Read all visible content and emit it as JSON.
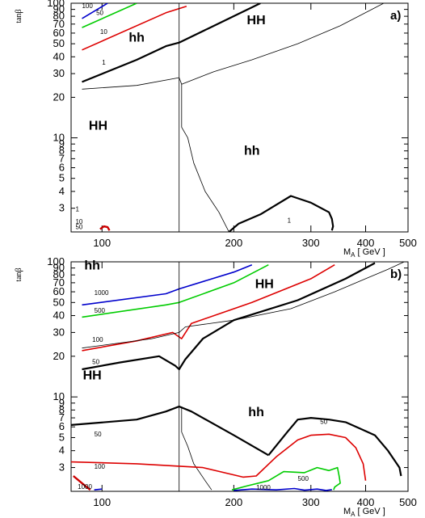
{
  "chart_data": [
    {
      "type": "line",
      "panel_label": "a)",
      "xlabel_main": "M",
      "xlabel_sub": "A",
      "xlabel_unit": "[ GeV ]",
      "ylabel": "tanβ",
      "x_scale": "log",
      "y_scale": "log",
      "xlim": [
        85,
        500
      ],
      "ylim": [
        2,
        100
      ],
      "x_ticks": [
        100,
        200,
        300,
        400,
        500
      ],
      "y_ticks": [
        3,
        4,
        5,
        6,
        7,
        8,
        9,
        10,
        20,
        30,
        40,
        50,
        60,
        70,
        80,
        90,
        100
      ],
      "regions": [
        {
          "text": "hh",
          "x": 120,
          "y": 52
        },
        {
          "text": "HH",
          "x": 225,
          "y": 70
        },
        {
          "text": "HH",
          "x": 98,
          "y": 11.5
        },
        {
          "text": "hh",
          "x": 220,
          "y": 7.5
        }
      ],
      "contour_labels": [
        {
          "text": "100",
          "x": 90,
          "y": 92
        },
        {
          "text": "50",
          "x": 97,
          "y": 82
        },
        {
          "text": "10",
          "x": 99,
          "y": 59
        },
        {
          "text": "1",
          "x": 100,
          "y": 35
        },
        {
          "text": "1",
          "x": 87,
          "y": 2.85
        },
        {
          "text": "10",
          "x": 87,
          "y": 2.3
        },
        {
          "text": "50",
          "x": 87,
          "y": 2.1
        },
        {
          "text": "1",
          "x": 265,
          "y": 2.35
        }
      ],
      "series": [
        {
          "id": "blue",
          "color": "#0000cc",
          "width": 1.6,
          "x": [
            90,
            103
          ],
          "y": [
            77,
            100
          ]
        },
        {
          "id": "green",
          "color": "#00cc00",
          "width": 1.6,
          "x": [
            90,
            120
          ],
          "y": [
            66,
            100
          ]
        },
        {
          "id": "red",
          "color": "#dd0000",
          "width": 1.6,
          "x": [
            90,
            140,
            156
          ],
          "y": [
            45,
            85,
            95
          ]
        },
        {
          "id": "red-corner",
          "color": "#cc0000",
          "width": 2.4,
          "x": [
            99,
            101,
            103,
            104
          ],
          "y": [
            2.1,
            2.2,
            2.17,
            2.05
          ]
        },
        {
          "id": "black-1",
          "color": "#000000",
          "width": 2.2,
          "x": [
            90,
            120,
            140,
            150,
            175,
            230
          ],
          "y": [
            26,
            38,
            48,
            51,
            65,
            100
          ]
        },
        {
          "id": "boundary-vertical",
          "color": "#000000",
          "width": 0.8,
          "x": [
            150,
            150
          ],
          "y": [
            2,
            100
          ]
        },
        {
          "id": "boundary-staircase",
          "color": "#000000",
          "width": 0.8,
          "x": [
            90,
            120,
            150,
            152,
            180,
            220,
            280,
            350,
            440
          ],
          "y": [
            23,
            24.5,
            28,
            25,
            31,
            38,
            50,
            68,
            100
          ]
        },
        {
          "id": "boundary-lower",
          "color": "#000000",
          "width": 0.8,
          "x": [
            152,
            152,
            157,
            162,
            172,
            185,
            195
          ],
          "y": [
            25,
            12,
            10,
            6.5,
            4,
            2.8,
            2
          ]
        },
        {
          "id": "black-contour-1",
          "color": "#000000",
          "width": 2.2,
          "x": [
            195,
            205,
            230,
            270,
            300,
            330,
            335,
            337,
            335
          ],
          "y": [
            2,
            2.3,
            2.7,
            3.7,
            3.3,
            2.8,
            2.5,
            2.2,
            2.05
          ]
        }
      ]
    },
    {
      "type": "line",
      "panel_label": "b)",
      "xlabel_main": "M",
      "xlabel_sub": "A",
      "xlabel_unit": "[ GeV ]",
      "ylabel": "tanβ",
      "x_scale": "log",
      "y_scale": "log",
      "xlim": [
        85,
        500
      ],
      "ylim": [
        2,
        100
      ],
      "x_ticks": [
        100,
        200,
        300,
        400,
        500
      ],
      "y_ticks": [
        3,
        4,
        5,
        6,
        7,
        8,
        9,
        10,
        20,
        30,
        40,
        50,
        60,
        70,
        80,
        90,
        100
      ],
      "regions": [
        {
          "text": "hh",
          "x": 95,
          "y": 88
        },
        {
          "text": "HH",
          "x": 235,
          "y": 64
        },
        {
          "text": "HH",
          "x": 95,
          "y": 13.5
        },
        {
          "text": "hh",
          "x": 225,
          "y": 7.2
        }
      ],
      "contour_labels": [
        {
          "text": "1000",
          "x": 96,
          "y": 57
        },
        {
          "text": "500",
          "x": 96,
          "y": 42
        },
        {
          "text": "100",
          "x": 95,
          "y": 25.5
        },
        {
          "text": "50",
          "x": 95,
          "y": 17.5
        },
        {
          "text": "50",
          "x": 96,
          "y": 5.1
        },
        {
          "text": "100",
          "x": 96,
          "y": 2.95
        },
        {
          "text": "1000",
          "x": 88,
          "y": 2.08
        },
        {
          "text": "1000",
          "x": 225,
          "y": 2.05
        },
        {
          "text": "500",
          "x": 280,
          "y": 2.4
        },
        {
          "text": "50",
          "x": 315,
          "y": 6.3
        }
      ],
      "series": [
        {
          "id": "blue",
          "color": "#0000cc",
          "width": 1.6,
          "x": [
            90,
            140,
            150,
            200,
            220
          ],
          "y": [
            48,
            58,
            63,
            84,
            95
          ]
        },
        {
          "id": "green",
          "color": "#00cc00",
          "width": 1.6,
          "x": [
            90,
            140,
            150,
            200,
            240
          ],
          "y": [
            39,
            48,
            50,
            70,
            95
          ]
        },
        {
          "id": "red",
          "color": "#dd0000",
          "width": 1.6,
          "x": [
            90,
            120,
            145,
            152,
            160,
            220,
            300,
            340
          ],
          "y": [
            22,
            26,
            30,
            27,
            35,
            50,
            75,
            95
          ]
        },
        {
          "id": "black-upper",
          "color": "#000000",
          "width": 2.2,
          "x": [
            90,
            110,
            135,
            147,
            150,
            155,
            170,
            200,
            280,
            360,
            400,
            420
          ],
          "y": [
            16,
            18,
            20,
            17,
            16,
            19,
            27,
            37,
            52,
            75,
            90,
            98
          ]
        },
        {
          "id": "boundary-vertical",
          "color": "#000000",
          "width": 0.8,
          "x": [
            150,
            150
          ],
          "y": [
            2,
            100
          ]
        },
        {
          "id": "boundary-staircase",
          "color": "#000000",
          "width": 0.8,
          "x": [
            90,
            130,
            150,
            155,
            200,
            270,
            340,
            400,
            450,
            490
          ],
          "y": [
            23,
            27,
            30,
            33,
            37,
            45,
            60,
            75,
            88,
            100
          ]
        },
        {
          "id": "boundary-lower",
          "color": "#000000",
          "width": 0.8,
          "x": [
            152,
            152,
            157,
            162,
            172,
            178
          ],
          "y": [
            8.5,
            5.5,
            4.3,
            3.2,
            2.4,
            2.05
          ]
        },
        {
          "id": "black-mid",
          "color": "#000000",
          "width": 2.2,
          "x": [
            85,
            120,
            140,
            150,
            160,
            200,
            240
          ],
          "y": [
            6.2,
            6.8,
            7.8,
            8.5,
            7.8,
            5.2,
            3.7
          ]
        },
        {
          "id": "black-right",
          "color": "#000000",
          "width": 2.2,
          "x": [
            240,
            265,
            280,
            300,
            330,
            360,
            390,
            420,
            450,
            478,
            482
          ],
          "y": [
            3.7,
            5.5,
            6.8,
            7.0,
            6.8,
            6.5,
            5.8,
            5.2,
            4.0,
            3.0,
            2.6
          ]
        },
        {
          "id": "red-lower",
          "color": "#dd0000",
          "width": 1.6,
          "x": [
            85,
            120,
            170,
            210,
            225,
            250,
            280,
            300,
            330,
            360,
            380,
            395,
            400
          ],
          "y": [
            3.3,
            3.2,
            3.0,
            2.55,
            2.6,
            3.6,
            4.8,
            5.2,
            5.3,
            5.0,
            4.2,
            3.2,
            2.4
          ]
        },
        {
          "id": "green-lower",
          "color": "#00cc00",
          "width": 1.6,
          "x": [
            198,
            215,
            240,
            260,
            290,
            310,
            330,
            345,
            348,
            350,
            340,
            338
          ],
          "y": [
            2.05,
            2.2,
            2.4,
            2.8,
            2.75,
            3.0,
            2.85,
            3.0,
            2.6,
            2.3,
            2.15,
            2.05
          ]
        },
        {
          "id": "blue-lower",
          "color": "#0000cc",
          "width": 1.6,
          "x": [
            200,
            220,
            250,
            275,
            290,
            310,
            325,
            335
          ],
          "y": [
            2.03,
            2.08,
            2.05,
            2.1,
            2.04,
            2.08,
            2.03,
            2.06
          ]
        },
        {
          "id": "red-corner",
          "color": "#cc0000",
          "width": 2.4,
          "x": [
            86,
            90,
            94
          ],
          "y": [
            2.6,
            2.3,
            2.05
          ]
        },
        {
          "id": "blue-corner",
          "color": "#0000cc",
          "width": 1.6,
          "x": [
            96,
            100
          ],
          "y": [
            2.05,
            2.08
          ]
        }
      ]
    }
  ]
}
